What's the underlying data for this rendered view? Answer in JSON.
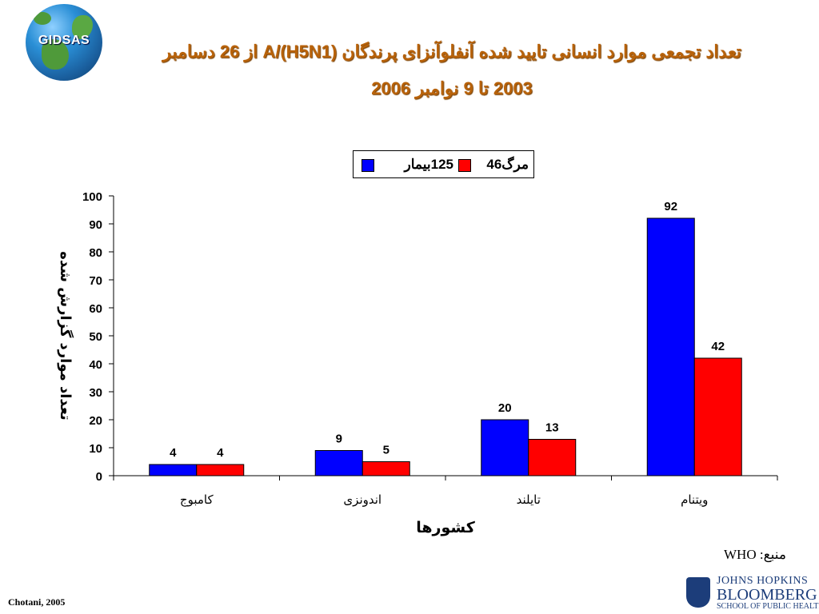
{
  "logo": {
    "text": "GIDSAS"
  },
  "title": {
    "line1": "تعداد تجمعی موارد انسانی تایید شده آنفلوآنزای پرندگان  A/(H5N1)  از 26 دسامبر",
    "line2": "2003 تا 9 نوامبر 2006"
  },
  "colors": {
    "cases": "#0000ff",
    "deaths": "#ff0000",
    "title": "#b8620a"
  },
  "chart_data": {
    "type": "bar",
    "categories": [
      "کامبوج",
      "اندونزی",
      "تایلند",
      "ویتنام"
    ],
    "series": [
      {
        "name": "بیمار",
        "total_label": "125",
        "values": [
          4,
          9,
          20,
          92
        ]
      },
      {
        "name": "مرگ",
        "total_label": "46",
        "values": [
          4,
          5,
          13,
          42
        ]
      }
    ],
    "ylabel": "تعداد موارد گزارش شده",
    "xlabel": "کشورها",
    "ylim": [
      0,
      100
    ],
    "yticks": [
      0,
      10,
      20,
      30,
      40,
      50,
      60,
      70,
      80,
      90,
      100
    ],
    "data_labels": true,
    "legend_position": "top"
  },
  "source": {
    "label": "منبع:",
    "value": "WHO"
  },
  "footer": {
    "text": "Chotani, 2005"
  },
  "affiliation": {
    "line1": "JOHNS HOPKINS",
    "line2": "BLOOMBERG",
    "line3": "SCHOOL OF PUBLIC HEALTH"
  }
}
